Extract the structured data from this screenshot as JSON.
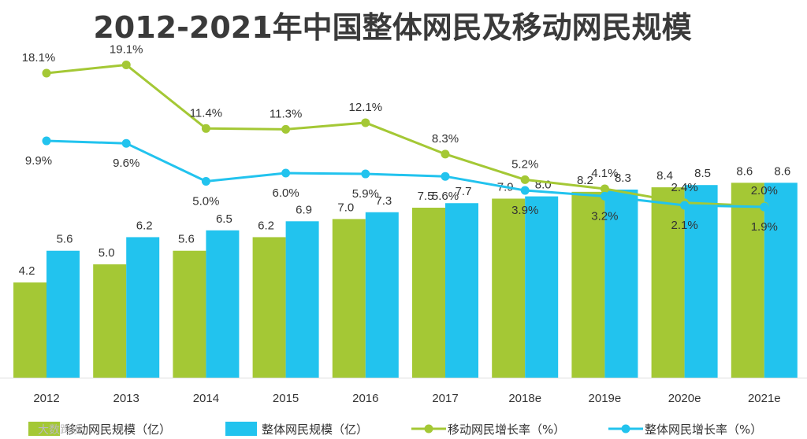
{
  "watermark": "大数跨境",
  "chart_data": {
    "type": "bar",
    "title": "2012-2021年中国整体网民及移动网民规模",
    "categories": [
      "2012",
      "2013",
      "2014",
      "2015",
      "2016",
      "2017",
      "2018e",
      "2019e",
      "2020e",
      "2021e"
    ],
    "series": [
      {
        "name": "移动网民规模（亿）",
        "kind": "bar",
        "color": "#a4c835",
        "values": [
          4.2,
          5.0,
          5.6,
          6.2,
          7.0,
          7.5,
          7.9,
          8.2,
          8.4,
          8.6
        ],
        "labels": [
          "4.2",
          "5.0",
          "5.6",
          "6.2",
          "7.0",
          "7.5",
          "7.9",
          "8.2",
          "8.4",
          "8.6"
        ]
      },
      {
        "name": "整体网民规模（亿）",
        "kind": "bar",
        "color": "#22c3ee",
        "values": [
          5.6,
          6.2,
          6.5,
          6.9,
          7.3,
          7.7,
          8.0,
          8.3,
          8.5,
          8.6
        ],
        "labels": [
          "5.6",
          "6.2",
          "6.5",
          "6.9",
          "7.3",
          "7.7",
          "8.0",
          "8.3",
          "8.5",
          "8.6"
        ]
      },
      {
        "name": "移动网民增长率（%）",
        "kind": "line",
        "color": "#a4c835",
        "values": [
          18.1,
          19.1,
          11.4,
          11.3,
          12.1,
          8.3,
          5.2,
          4.1,
          2.4,
          2.0
        ],
        "labels": [
          "18.1%",
          "19.1%",
          "11.4%",
          "11.3%",
          "12.1%",
          "8.3%",
          "5.2%",
          "4.1%",
          "2.4%",
          "2.0%"
        ]
      },
      {
        "name": "整体网民增长率（%）",
        "kind": "line",
        "color": "#22c3ee",
        "values": [
          9.9,
          9.6,
          5.0,
          6.0,
          5.9,
          5.6,
          3.9,
          3.2,
          2.1,
          1.9
        ],
        "labels": [
          "9.9%",
          "9.6%",
          "5.0%",
          "6.0%",
          "5.9%",
          "5.6%",
          "3.9%",
          "3.2%",
          "2.1%",
          "1.9%"
        ]
      }
    ],
    "bar_ylim": [
      0,
      10
    ],
    "legend_position": "bottom"
  }
}
